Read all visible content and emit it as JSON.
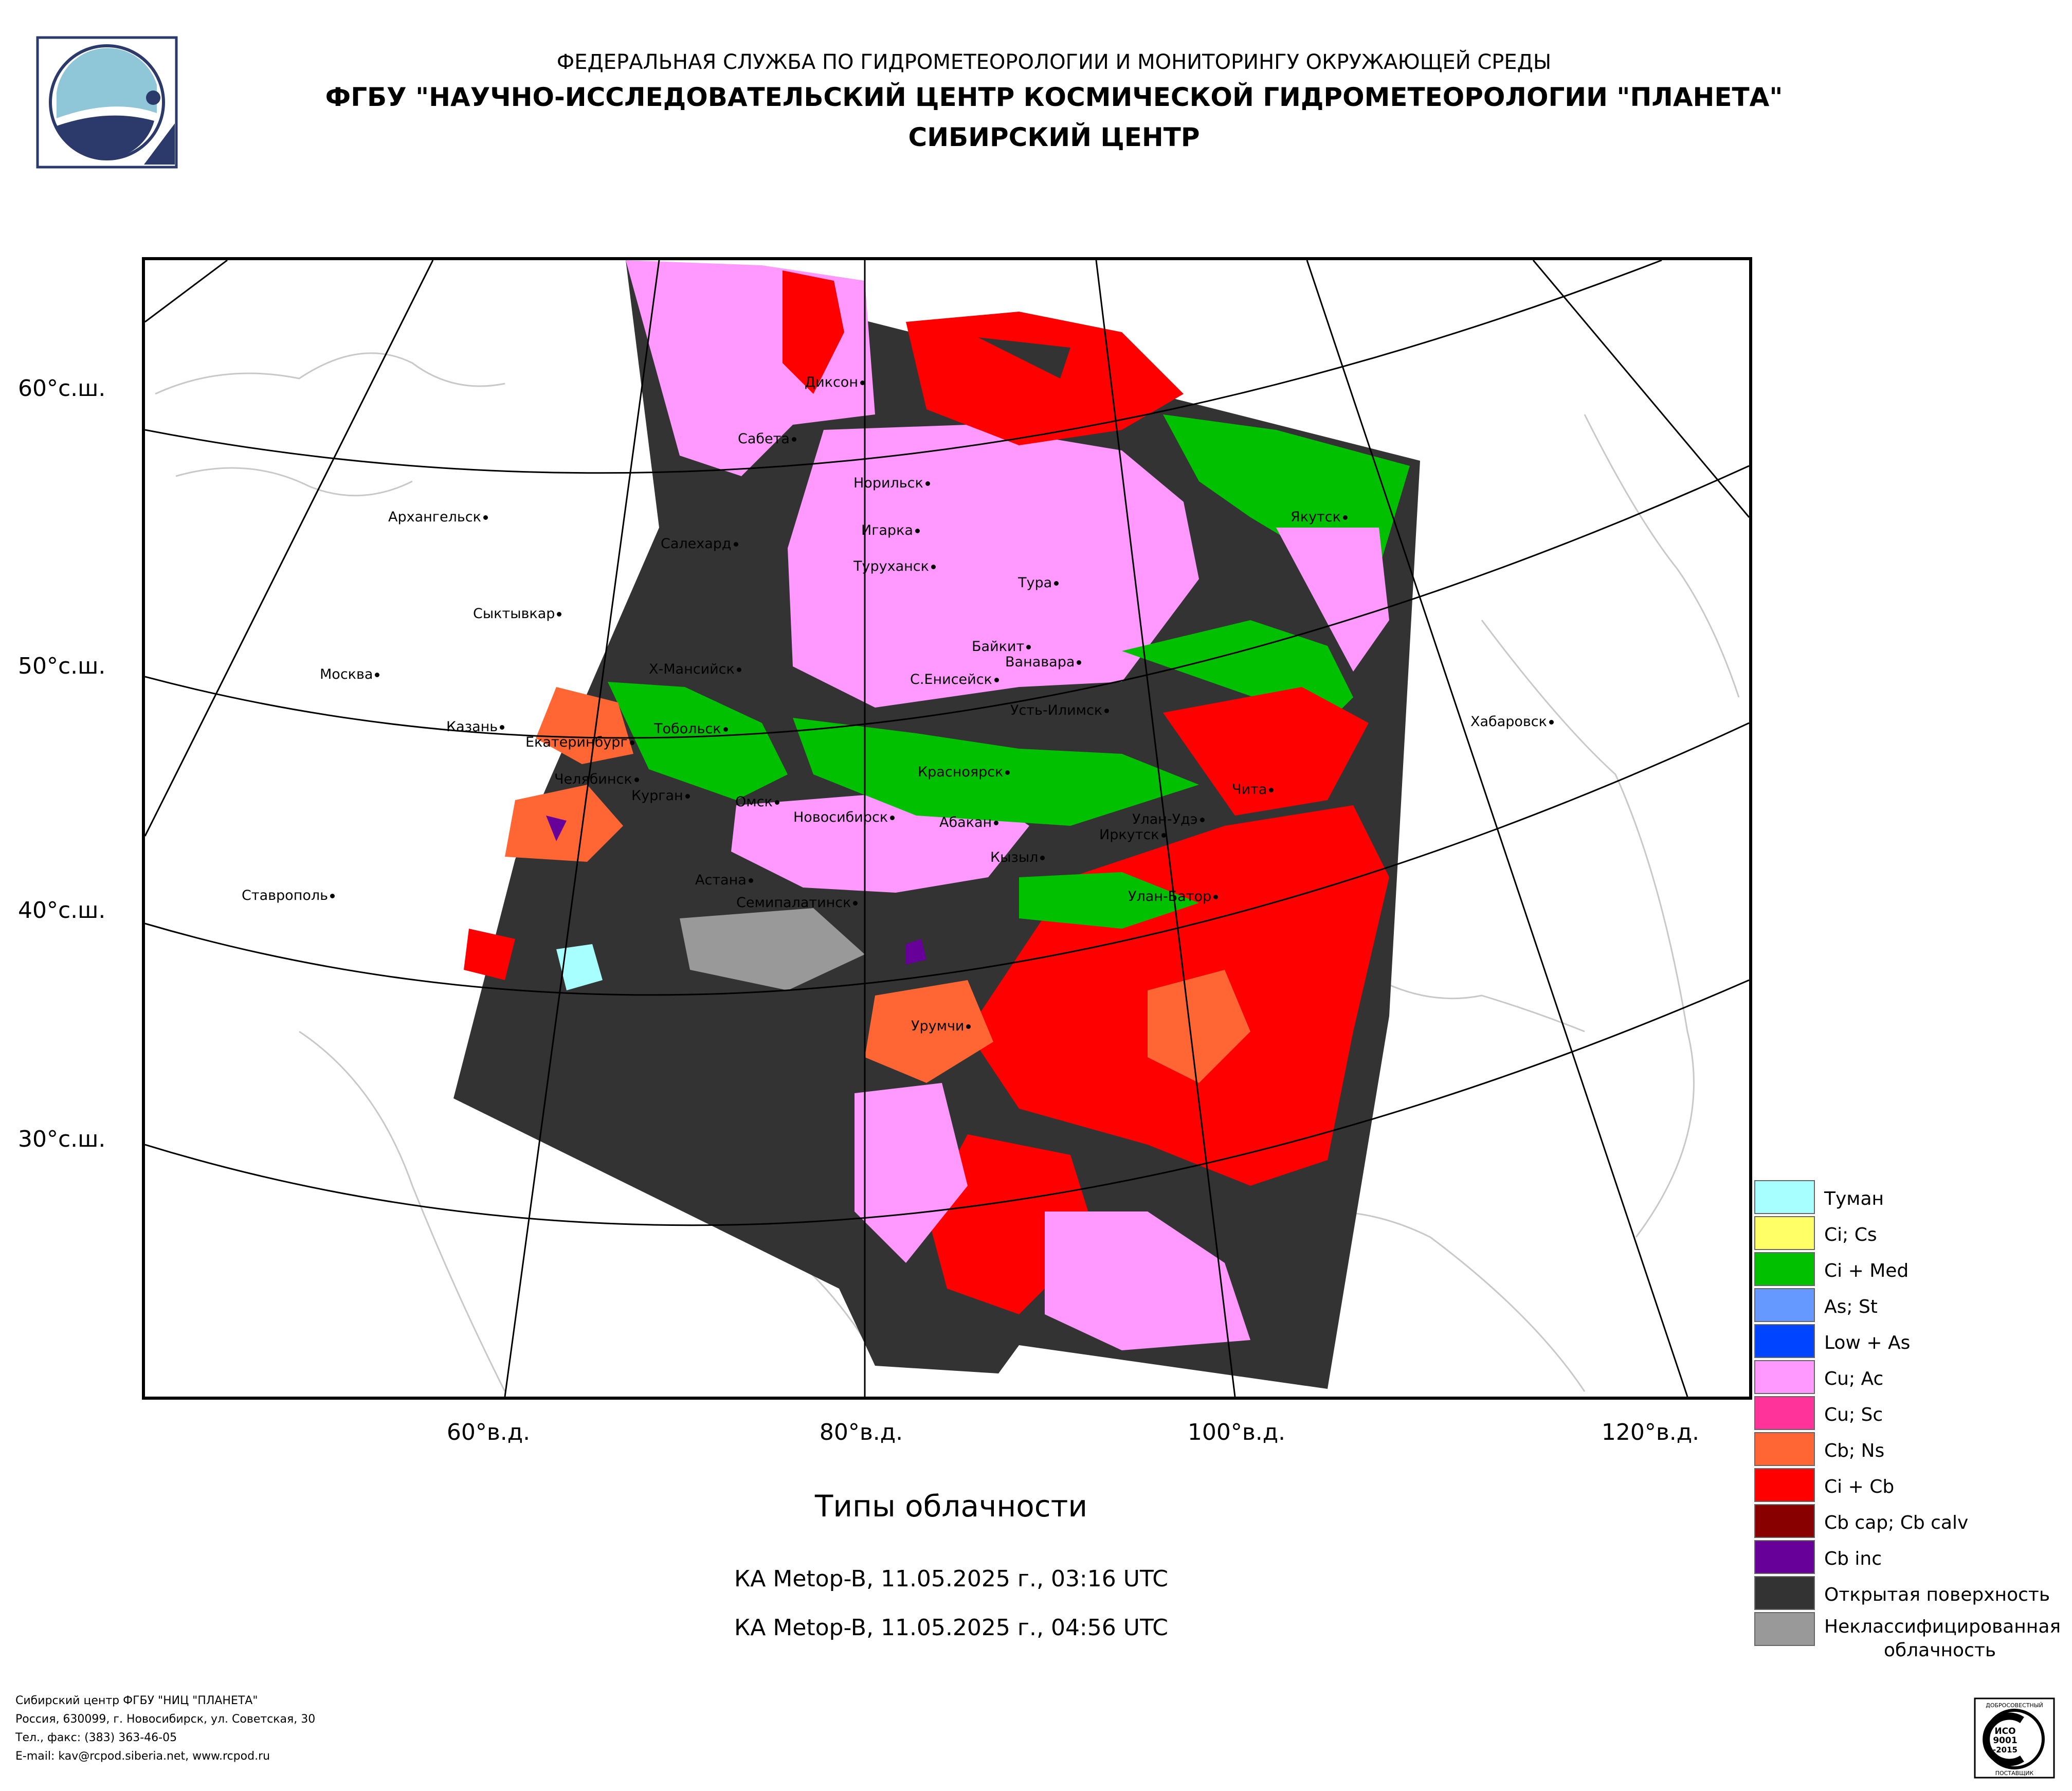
{
  "header": {
    "agency": "ФЕДЕРАЛЬНАЯ СЛУЖБА ПО ГИДРОМЕТЕОРОЛОГИИ И МОНИТОРИНГУ ОКРУЖАЮЩЕЙ СРЕДЫ",
    "organization": "ФГБУ \"НАУЧНО-ИССЛЕДОВАТЕЛЬСКИЙ ЦЕНТР КОСМИЧЕСКОЙ ГИДРОМЕТЕОРОЛОГИИ \"ПЛАНЕТА\"",
    "center": "СИБИРСКИЙ ЦЕНТР"
  },
  "map": {
    "lat_labels": [
      "60°с.ш.",
      "50°с.ш.",
      "40°с.ш.",
      "30°с.ш."
    ],
    "lon_labels": [
      "60°в.д.",
      "80°в.д.",
      "100°в.д.",
      "120°в.д."
    ],
    "cities": [
      "Диксон",
      "Сабета",
      "Норильск",
      "Архангельск",
      "Салехард",
      "Игарка",
      "Якутск",
      "Туруханск",
      "Тура",
      "Сыктывкар",
      "Байкит",
      "Ванавара",
      "Москва",
      "Х-Мансийск",
      "С.Енисейск",
      "Усть-Илимск",
      "Хабаровск",
      "Казань",
      "Тобольск",
      "Екатеринбург",
      "Красноярск",
      "Челябинск",
      "Чита",
      "Курган",
      "Омск",
      "Новосибирск",
      "Абакан",
      "Улан-Удэ",
      "Иркутск",
      "Кызыл",
      "Астана",
      "Ставрополь",
      "Улан-Батор",
      "Семипалатинск",
      "Урумчи"
    ]
  },
  "title": "Типы облачности",
  "satellite_passes": [
    "КА Metop-B, 11.05.2025 г., 03:16 UTC",
    "КА Metop-B, 11.05.2025 г., 04:56 UTC"
  ],
  "legend": [
    {
      "label": "Туман",
      "color": "#a8ffff"
    },
    {
      "label": "Ci; Cs",
      "color": "#ffff66"
    },
    {
      "label": "Ci + Med",
      "color": "#00c000"
    },
    {
      "label": "As; St",
      "color": "#6699ff"
    },
    {
      "label": "Low + As",
      "color": "#0044ff"
    },
    {
      "label": "Cu; Ac",
      "color": "#ff99ff"
    },
    {
      "label": "Cu; Sc",
      "color": "#ff3399"
    },
    {
      "label": "Cb; Ns",
      "color": "#ff6633"
    },
    {
      "label": "Ci + Cb",
      "color": "#ff0000"
    },
    {
      "label": "Cb cap; Cb calv",
      "color": "#880000"
    },
    {
      "label": "Cb inc",
      "color": "#660099"
    },
    {
      "label": "Открытая поверхность",
      "color": "#333333"
    },
    {
      "label": "Неклассифицированная облачность",
      "color": "#999999"
    }
  ],
  "footer": [
    "Сибирский центр ФГБУ \"НИЦ \"ПЛАНЕТА\"",
    "Россия, 630099, г. Новосибирск, ул. Советская, 30",
    "Тел., факс: (383) 363-46-05",
    "E-mail: kav@rcpod.siberia.net, www.rcpod.ru"
  ],
  "iso_badge": {
    "top": "ДОБРОСОВЕСТНЫЙ",
    "line1": "ИСО",
    "line2": "9001",
    "line3": "-2015",
    "bottom": "ПОСТАВЩИК"
  }
}
